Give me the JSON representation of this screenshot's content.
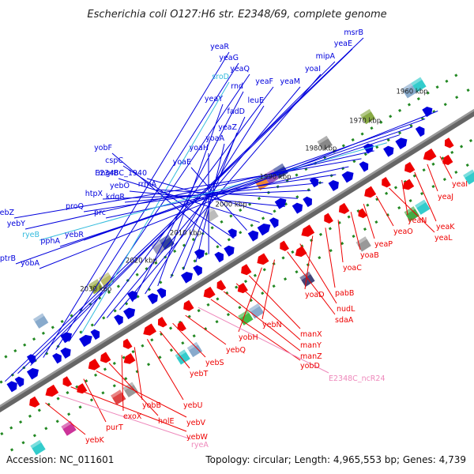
{
  "title": "Escherichia coli O127:H6 str. E2348/69, complete genome",
  "footer": {
    "accession": "Accession: NC_011601",
    "summary": "Topology: circular; Length: 4,965,553 bp; Genes: 4,739"
  },
  "colors": {
    "plus_strand": "#0000dd",
    "minus_strand": "#ee0000",
    "rna": "#33bbdd",
    "ncrna": "#ee88bb",
    "backbone": "#666666",
    "tick": "#228822"
  },
  "scale_ticks": [
    "1960 kbp",
    "1970 kbp",
    "1980 kbp",
    "1990 kbp",
    "2000 kbp",
    "2010 kbp",
    "2020 kbp",
    "2030 kbp"
  ],
  "upper_labels": [
    {
      "text": "msrB",
      "kind": "gene"
    },
    {
      "text": "yeaE",
      "kind": "gene"
    },
    {
      "text": "mipA",
      "kind": "gene"
    },
    {
      "text": "yeaR",
      "kind": "gene"
    },
    {
      "text": "yeaG",
      "kind": "gene"
    },
    {
      "text": "yeaQ",
      "kind": "gene"
    },
    {
      "text": "sroD",
      "kind": "rna"
    },
    {
      "text": "yeaF",
      "kind": "gene"
    },
    {
      "text": "yeaM",
      "kind": "gene"
    },
    {
      "text": "yoaI",
      "kind": "gene"
    },
    {
      "text": "rnd",
      "kind": "gene"
    },
    {
      "text": "leuE",
      "kind": "gene"
    },
    {
      "text": "yeaY",
      "kind": "gene"
    },
    {
      "text": "fadD",
      "kind": "gene"
    },
    {
      "text": "yeaZ",
      "kind": "gene"
    },
    {
      "text": "yoaA",
      "kind": "gene"
    },
    {
      "text": "yoaH",
      "kind": "gene"
    },
    {
      "text": "yobF",
      "kind": "gene"
    },
    {
      "text": "cspC",
      "kind": "gene"
    },
    {
      "text": "yoaE",
      "kind": "gene"
    },
    {
      "text": "mgrB",
      "kind": "gene"
    },
    {
      "text": "E2348C_1940",
      "kind": "gene"
    },
    {
      "text": "yebO",
      "kind": "gene"
    },
    {
      "text": "rrmA",
      "kind": "gene"
    },
    {
      "text": "htpX",
      "kind": "gene"
    },
    {
      "text": "kdgR",
      "kind": "gene"
    },
    {
      "text": "proQ",
      "kind": "gene"
    },
    {
      "text": "prc",
      "kind": "gene"
    },
    {
      "text": "yebZ",
      "kind": "gene"
    },
    {
      "text": "yebY",
      "kind": "gene"
    },
    {
      "text": "ryeB",
      "kind": "rna"
    },
    {
      "text": "pphA",
      "kind": "gene"
    },
    {
      "text": "yebR",
      "kind": "gene"
    },
    {
      "text": "ptrB",
      "kind": "gene"
    },
    {
      "text": "yobA",
      "kind": "gene"
    }
  ],
  "lower_labels": [
    {
      "text": "yeaI",
      "kind": "gene"
    },
    {
      "text": "yeaJ",
      "kind": "gene"
    },
    {
      "text": "yeaK",
      "kind": "gene"
    },
    {
      "text": "yeaN",
      "kind": "gene"
    },
    {
      "text": "yeaL",
      "kind": "gene"
    },
    {
      "text": "yeaO",
      "kind": "gene"
    },
    {
      "text": "yeaP",
      "kind": "gene"
    },
    {
      "text": "yoaB",
      "kind": "gene"
    },
    {
      "text": "yoaC",
      "kind": "gene"
    },
    {
      "text": "pabB",
      "kind": "gene"
    },
    {
      "text": "yoaD",
      "kind": "gene"
    },
    {
      "text": "nudL",
      "kind": "gene"
    },
    {
      "text": "sdaA",
      "kind": "gene"
    },
    {
      "text": "yebN",
      "kind": "gene"
    },
    {
      "text": "yobH",
      "kind": "gene"
    },
    {
      "text": "manX",
      "kind": "gene"
    },
    {
      "text": "manY",
      "kind": "gene"
    },
    {
      "text": "manZ",
      "kind": "gene"
    },
    {
      "text": "yobD",
      "kind": "gene"
    },
    {
      "text": "E2348C_ncR24",
      "kind": "ncrna"
    },
    {
      "text": "yebQ",
      "kind": "gene"
    },
    {
      "text": "yebS",
      "kind": "gene"
    },
    {
      "text": "yebT",
      "kind": "gene"
    },
    {
      "text": "yebU",
      "kind": "gene"
    },
    {
      "text": "yobB",
      "kind": "gene"
    },
    {
      "text": "exoX",
      "kind": "gene"
    },
    {
      "text": "holE",
      "kind": "gene"
    },
    {
      "text": "yebV",
      "kind": "gene"
    },
    {
      "text": "purT",
      "kind": "gene"
    },
    {
      "text": "yebW",
      "kind": "gene"
    },
    {
      "text": "ryeA",
      "kind": "ncrna"
    },
    {
      "text": "yebK",
      "kind": "gene"
    }
  ]
}
